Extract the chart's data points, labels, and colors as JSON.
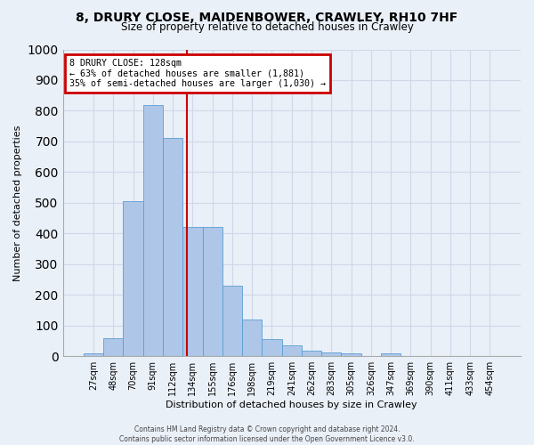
{
  "title1": "8, DRURY CLOSE, MAIDENBOWER, CRAWLEY, RH10 7HF",
  "title2": "Size of property relative to detached houses in Crawley",
  "xlabel": "Distribution of detached houses by size in Crawley",
  "ylabel": "Number of detached properties",
  "categories": [
    "27sqm",
    "48sqm",
    "70sqm",
    "91sqm",
    "112sqm",
    "134sqm",
    "155sqm",
    "176sqm",
    "198sqm",
    "219sqm",
    "241sqm",
    "262sqm",
    "283sqm",
    "305sqm",
    "326sqm",
    "347sqm",
    "369sqm",
    "390sqm",
    "411sqm",
    "433sqm",
    "454sqm"
  ],
  "values": [
    8,
    60,
    505,
    820,
    710,
    420,
    420,
    230,
    120,
    57,
    35,
    18,
    12,
    10,
    0,
    10,
    0,
    0,
    0,
    0,
    0
  ],
  "bar_color": "#aec6e8",
  "bar_edge_color": "#5a9fd4",
  "annotation_title": "8 DRURY CLOSE: 128sqm",
  "annotation_line1": "← 63% of detached houses are smaller (1,881)",
  "annotation_line2": "35% of semi-detached houses are larger (1,030) →",
  "annotation_box_color": "#ffffff",
  "annotation_box_edge": "#cc0000",
  "vline_color": "#cc0000",
  "grid_color": "#d0d8e8",
  "bg_color": "#eaf0f8",
  "footer1": "Contains HM Land Registry data © Crown copyright and database right 2024.",
  "footer2": "Contains public sector information licensed under the Open Government Licence v3.0.",
  "ylim": [
    0,
    1000
  ],
  "title1_fontsize": 10,
  "title2_fontsize": 8.5,
  "ylabel_fontsize": 8,
  "xlabel_fontsize": 8,
  "tick_fontsize": 7,
  "footer_fontsize": 5.5
}
